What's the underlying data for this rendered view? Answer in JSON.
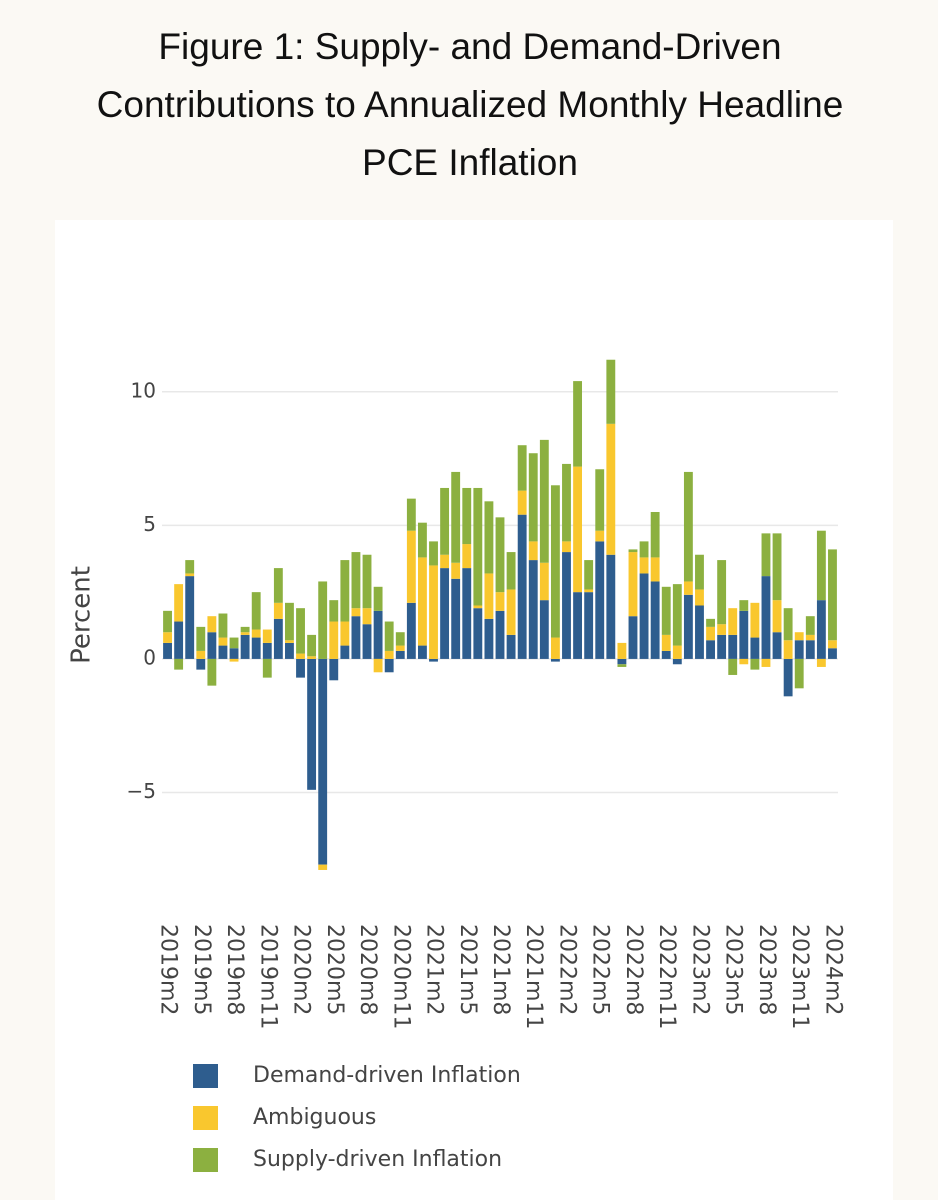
{
  "chart_data": {
    "type": "bar",
    "stacking": "relative",
    "title": "Figure 1: Supply- and Demand-Driven Contributions to Annualized Monthly Headline PCE Inflation",
    "ylabel": "Percent",
    "categories": [
      "2019m2",
      null,
      null,
      "2019m5",
      null,
      null,
      "2019m8",
      null,
      null,
      "2019m11",
      null,
      null,
      "2020m2",
      null,
      null,
      "2020m5",
      null,
      null,
      "2020m8",
      null,
      null,
      "2020m11",
      null,
      null,
      "2021m2",
      null,
      null,
      "2021m5",
      null,
      null,
      "2021m8",
      null,
      null,
      "2021m11",
      null,
      null,
      "2022m2",
      null,
      null,
      "2022m5",
      null,
      null,
      "2022m8",
      null,
      null,
      "2022m11",
      null,
      null,
      "2023m2",
      null,
      null,
      "2023m5",
      null,
      null,
      "2023m8",
      null,
      null,
      "2023m11",
      null,
      null,
      "2024m2"
    ],
    "series": [
      {
        "name": "Demand-driven Inflation",
        "color": "#2e5d8e",
        "values": [
          0.6,
          1.4,
          3.1,
          -0.4,
          1.0,
          0.5,
          0.4,
          0.9,
          0.8,
          0.6,
          1.5,
          0.6,
          -0.7,
          -4.9,
          -7.7,
          -0.8,
          0.5,
          1.6,
          1.3,
          1.8,
          -0.5,
          0.3,
          2.1,
          0.5,
          -0.1,
          3.4,
          3.0,
          3.4,
          1.9,
          1.5,
          1.8,
          0.9,
          5.4,
          3.7,
          2.2,
          -0.1,
          4.0,
          2.5,
          2.5,
          4.4,
          3.9,
          -0.2,
          1.6,
          3.2,
          2.9,
          0.3,
          -0.2,
          2.4,
          2.0,
          0.7,
          0.9,
          0.9,
          1.8,
          0.8,
          3.1,
          1.0,
          -1.4,
          0.7,
          0.7,
          2.2,
          0.4
        ]
      },
      {
        "name": "Ambiguous",
        "color": "#f9c72e",
        "values": [
          0.4,
          1.4,
          0.1,
          0.3,
          0.6,
          0.3,
          -0.1,
          0.1,
          0.3,
          0.5,
          0.6,
          0.1,
          0.2,
          0.1,
          -0.2,
          1.4,
          0.9,
          0.3,
          0.6,
          -0.5,
          0.3,
          0.2,
          2.7,
          3.3,
          3.5,
          0.5,
          0.6,
          0.9,
          0.1,
          1.7,
          0.7,
          1.7,
          0.9,
          0.7,
          1.4,
          0.8,
          0.4,
          4.7,
          0.1,
          0.4,
          4.9,
          0.6,
          2.4,
          0.6,
          0.9,
          0.6,
          0.5,
          0.5,
          0.6,
          0.5,
          0.4,
          1.0,
          -0.2,
          1.3,
          -0.3,
          1.2,
          0.7,
          0.3,
          0.2,
          -0.3,
          0.3
        ]
      },
      {
        "name": "Supply-driven Inflation",
        "color": "#8cb040",
        "values": [
          0.8,
          -0.4,
          0.5,
          0.9,
          -1.0,
          0.9,
          0.4,
          0.2,
          1.4,
          -0.7,
          1.3,
          1.4,
          1.7,
          0.8,
          2.9,
          0.8,
          2.3,
          2.1,
          2.0,
          0.9,
          1.1,
          0.5,
          1.2,
          1.3,
          0.9,
          2.5,
          3.4,
          2.1,
          4.4,
          2.7,
          2.8,
          1.4,
          1.7,
          3.3,
          4.6,
          5.7,
          2.9,
          3.2,
          1.1,
          2.3,
          2.4,
          -0.1,
          0.1,
          0.6,
          1.7,
          1.8,
          2.3,
          4.1,
          1.3,
          0.3,
          2.4,
          -0.6,
          0.4,
          -0.4,
          1.6,
          2.5,
          1.2,
          -1.1,
          0.7,
          2.6,
          3.4
        ]
      }
    ],
    "ylim": [
      -8.5,
      12.5
    ],
    "yticks": [
      {
        "value": -5,
        "label": "−5"
      },
      0,
      5,
      10
    ],
    "grid": true
  }
}
